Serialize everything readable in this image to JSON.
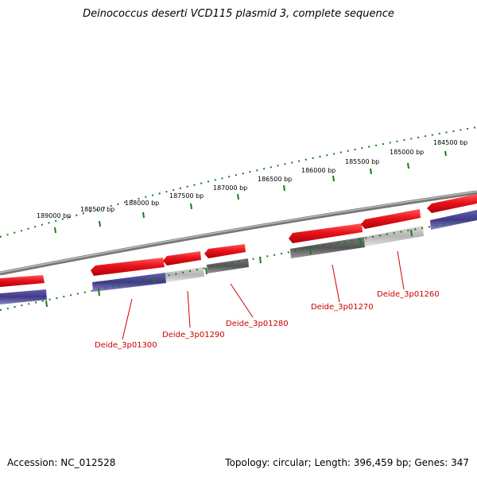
{
  "title": "Deinococcus deserti VCD115 plasmid 3, complete sequence",
  "footer": {
    "accession": "Accession: NC_012528",
    "summary": "Topology: circular; Length: 396,459 bp; Genes: 347"
  },
  "colors": {
    "tick": "#1a7a1a",
    "backbone": "#8a8a8a",
    "cds_forward": "#e8141b",
    "gene_blue": "#3e3a86",
    "gene_gray_light": "#b4b4b4",
    "gene_gray_dark": "#5a5a5a",
    "label": "#cc0000"
  },
  "ticks": [
    {
      "label": "184500 bp"
    },
    {
      "label": "185000 bp"
    },
    {
      "label": "185500 bp"
    },
    {
      "label": "186000 bp"
    },
    {
      "label": "186500 bp"
    },
    {
      "label": "187000 bp"
    },
    {
      "label": "187500 bp"
    },
    {
      "label": "188000 bp"
    },
    {
      "label": "188500 bp"
    },
    {
      "label": "189000 bp"
    }
  ],
  "gene_labels": [
    {
      "name": "Deide_3p01260"
    },
    {
      "name": "Deide_3p01270"
    },
    {
      "name": "Deide_3p01280"
    },
    {
      "name": "Deide_3p01290"
    },
    {
      "name": "Deide_3p01300"
    }
  ]
}
